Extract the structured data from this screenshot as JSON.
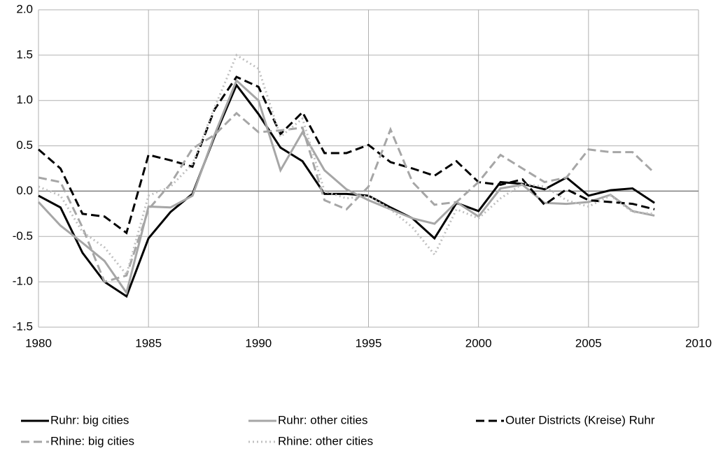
{
  "chart_data": {
    "type": "line",
    "x": [
      1980,
      1981,
      1982,
      1983,
      1984,
      1985,
      1986,
      1987,
      1988,
      1989,
      1990,
      1991,
      1992,
      1993,
      1994,
      1995,
      1996,
      1997,
      1998,
      1999,
      2000,
      2001,
      2002,
      2003,
      2004,
      2005,
      2006,
      2007,
      2008
    ],
    "series": [
      {
        "name": "Ruhr: big cities",
        "color": "#000000",
        "dash": "solid",
        "values": [
          -0.05,
          -0.18,
          -0.68,
          -1.0,
          -1.16,
          -0.52,
          -0.23,
          -0.03,
          0.6,
          1.17,
          0.85,
          0.48,
          0.33,
          -0.03,
          -0.03,
          -0.05,
          -0.18,
          -0.3,
          -0.52,
          -0.13,
          -0.22,
          0.1,
          0.08,
          0.02,
          0.15,
          -0.05,
          0.01,
          0.03,
          -0.13
        ]
      },
      {
        "name": "Ruhr: other cities",
        "color": "#a6a6a6",
        "dash": "solid",
        "values": [
          -0.12,
          -0.38,
          -0.57,
          -0.77,
          -1.12,
          -0.17,
          -0.18,
          -0.05,
          0.62,
          1.22,
          1.0,
          0.23,
          0.65,
          0.23,
          0.02,
          -0.1,
          -0.2,
          -0.3,
          -0.36,
          -0.12,
          -0.28,
          0.03,
          0.07,
          -0.13,
          -0.14,
          -0.12,
          -0.04,
          -0.22,
          -0.27
        ]
      },
      {
        "name": "Outer Districts (Kreise) Ruhr",
        "color": "#000000",
        "dash": "dashed",
        "values": [
          0.46,
          0.25,
          -0.25,
          -0.28,
          -0.46,
          0.4,
          0.34,
          0.27,
          0.9,
          1.26,
          1.15,
          0.63,
          0.87,
          0.42,
          0.42,
          0.51,
          0.32,
          0.25,
          0.17,
          0.33,
          0.1,
          0.07,
          0.13,
          -0.15,
          0.02,
          -0.1,
          -0.12,
          -0.14,
          -0.2
        ]
      },
      {
        "name": "Rhine: big cities",
        "color": "#a6a6a6",
        "dash": "dashed",
        "values": [
          0.15,
          0.1,
          -0.4,
          -1.0,
          -0.93,
          -0.2,
          0.08,
          0.47,
          0.62,
          0.86,
          0.65,
          0.67,
          0.7,
          -0.1,
          -0.2,
          0.05,
          0.68,
          0.1,
          -0.15,
          -0.12,
          0.1,
          0.4,
          0.25,
          0.1,
          0.15,
          0.46,
          0.43,
          0.43,
          0.2
        ]
      },
      {
        "name": "Rhine: other cities",
        "color": "#c0c0c0",
        "dash": "dotted",
        "values": [
          0.05,
          -0.05,
          -0.45,
          -0.62,
          -0.92,
          -0.05,
          0.05,
          0.3,
          0.92,
          1.5,
          1.35,
          0.6,
          0.8,
          0.0,
          -0.08,
          -0.05,
          -0.2,
          -0.4,
          -0.7,
          -0.2,
          -0.3,
          -0.08,
          0.08,
          0.05,
          -0.1,
          -0.17,
          -0.05,
          -0.23,
          -0.25
        ]
      }
    ],
    "xlim": [
      1980,
      2010
    ],
    "xticks": [
      1980,
      1985,
      1990,
      1995,
      2000,
      2005,
      2010
    ],
    "ylim": [
      -1.5,
      2.0
    ],
    "yticks": [
      {
        "value": -1.5,
        "label": "-1.5"
      },
      {
        "value": -1.0,
        "label": "-1.0"
      },
      {
        "value": -0.5,
        "label": "-0.5"
      },
      {
        "value": 0,
        "label": "0.0"
      },
      {
        "value": 0.5,
        "label": "0.5"
      },
      {
        "value": 1.0,
        "label": "1.0"
      },
      {
        "value": 1.5,
        "label": "1.5"
      },
      {
        "value": 2.0,
        "label": "2.0"
      }
    ],
    "grid": true,
    "legend": "bottom"
  }
}
